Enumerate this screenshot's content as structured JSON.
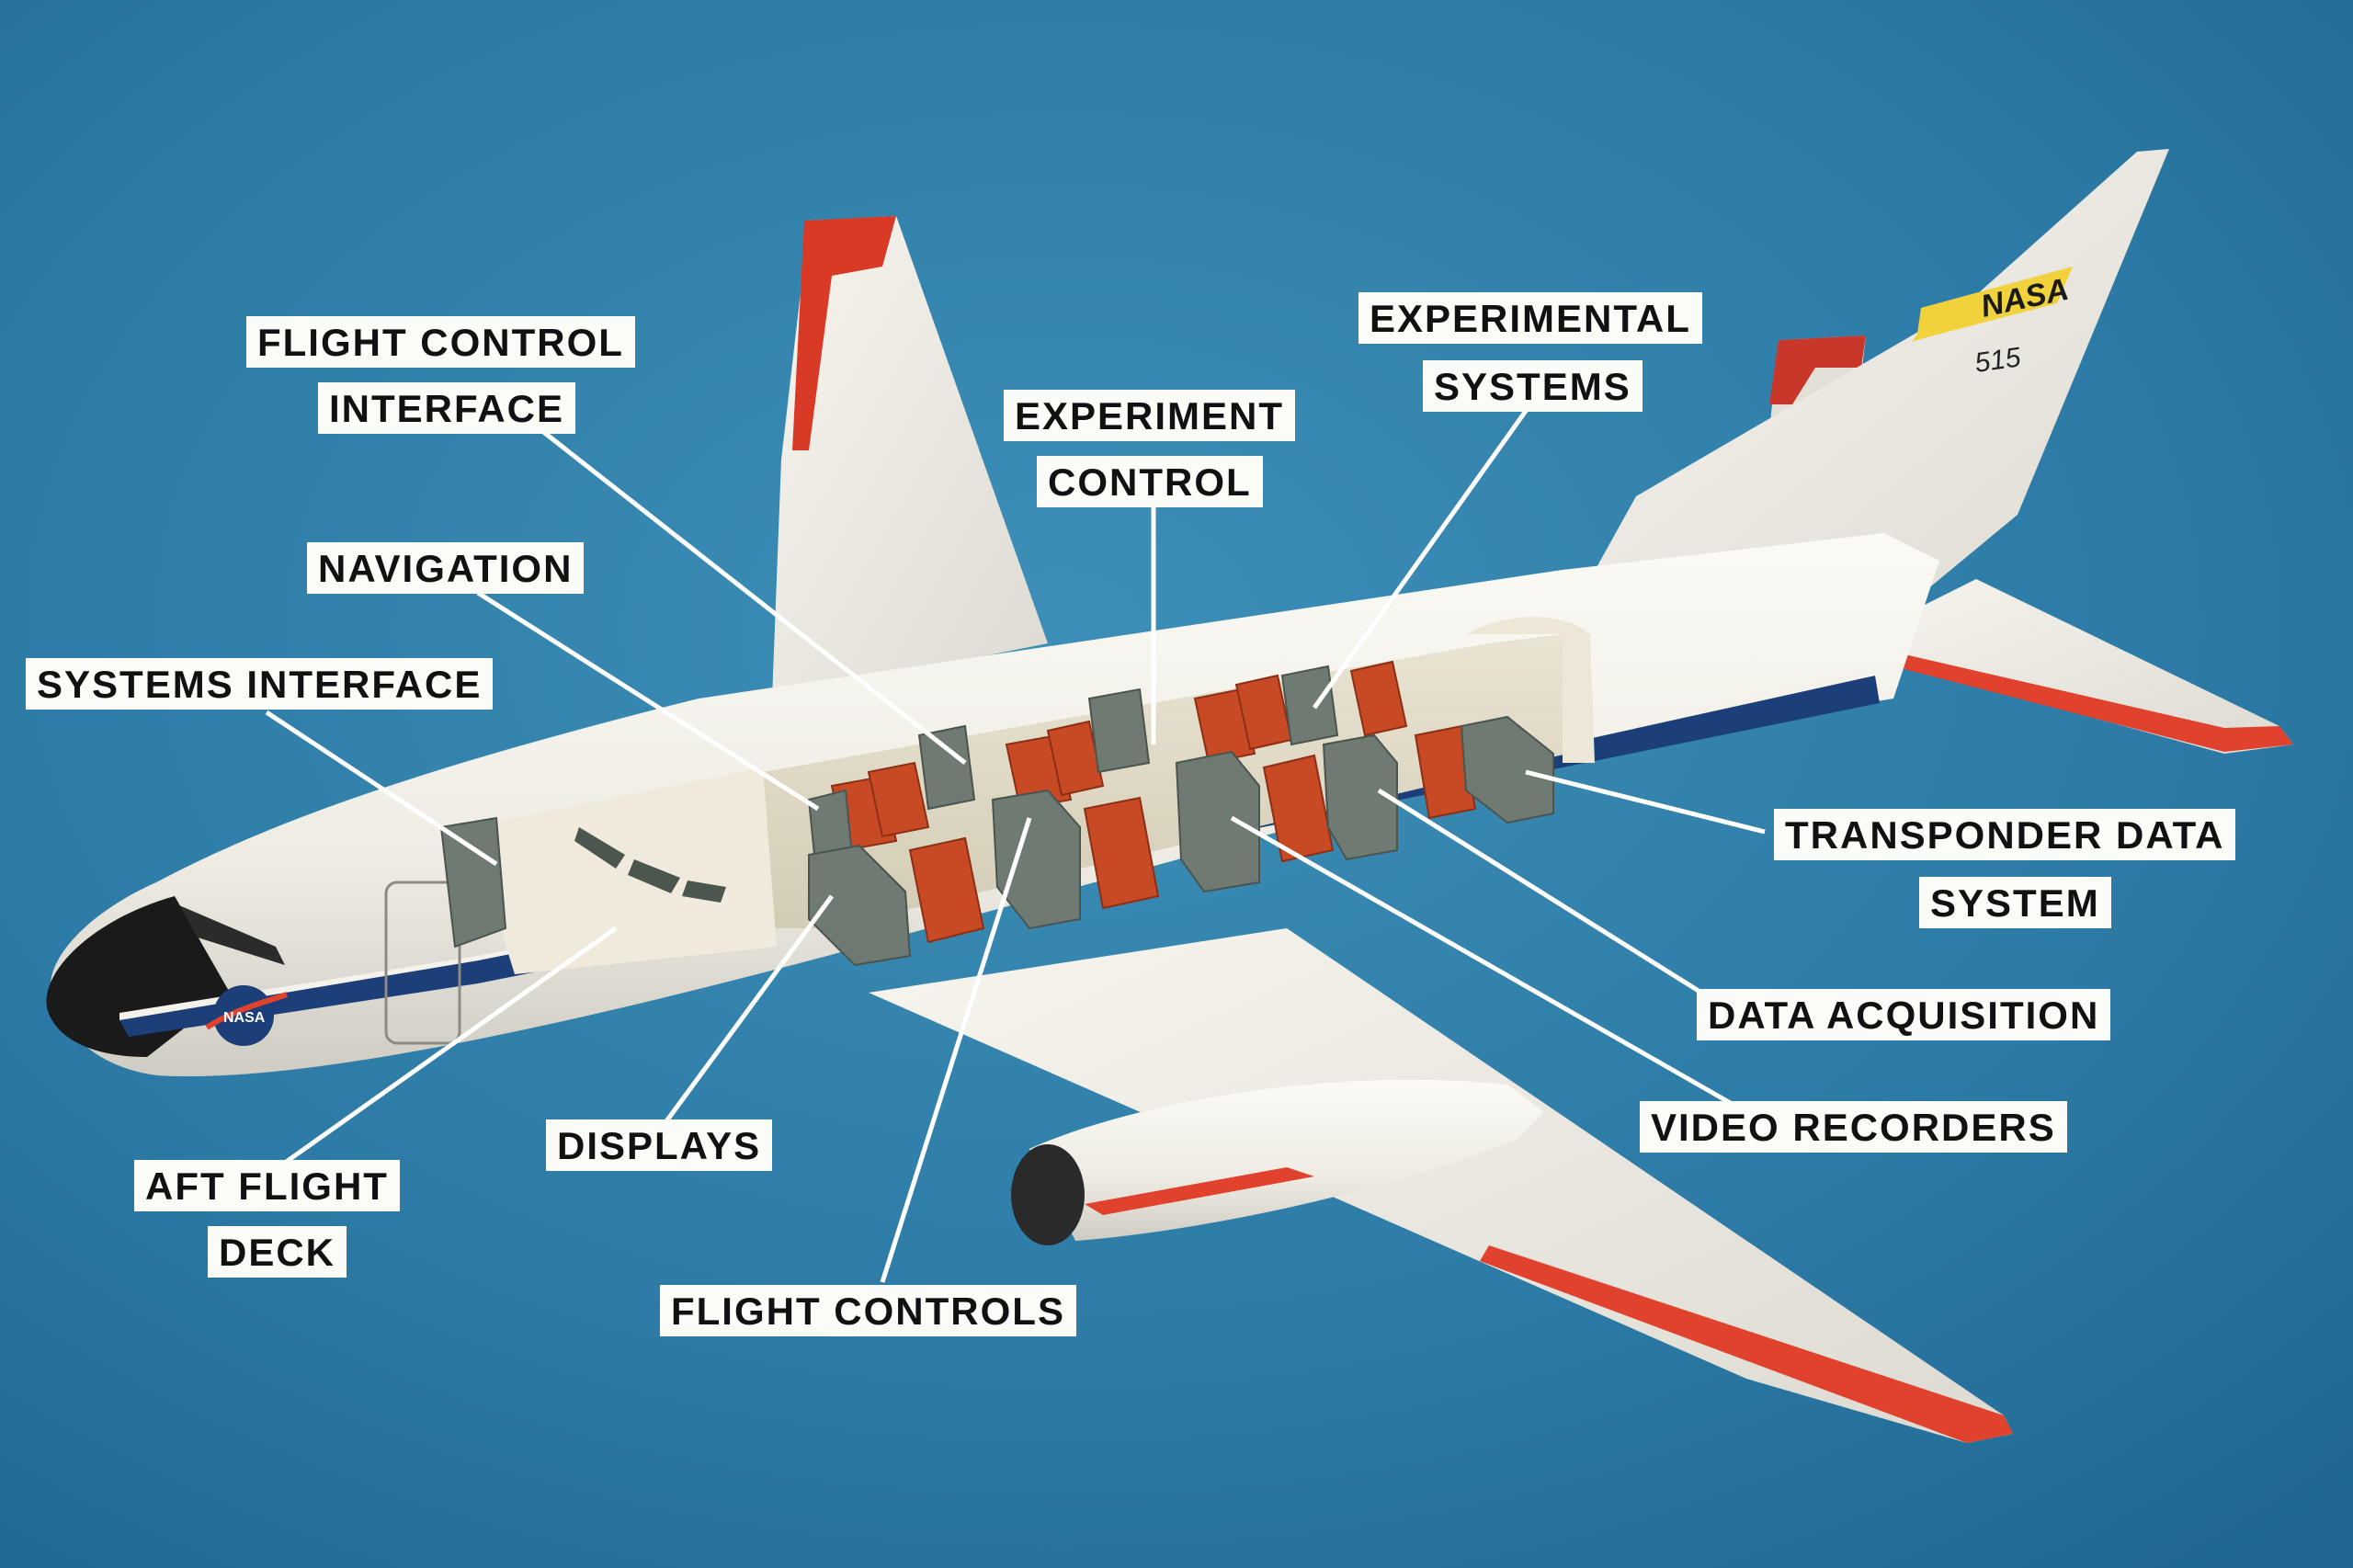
{
  "aircraft": {
    "tail_logo": "NASA",
    "tail_number": "515",
    "nose_logo": "NASA"
  },
  "labels": {
    "flight_control_interface": [
      "FLIGHT CONTROL",
      "INTERFACE"
    ],
    "navigation": "NAVIGATION",
    "systems_interface": "SYSTEMS INTERFACE",
    "aft_flight_deck": [
      "AFT FLIGHT",
      "DECK"
    ],
    "displays": "DISPLAYS",
    "flight_controls": "FLIGHT CONTROLS",
    "experiment_control": [
      "EXPERIMENT",
      "CONTROL"
    ],
    "experimental_systems": [
      "EXPERIMENTAL",
      "SYSTEMS"
    ],
    "transponder_data_system": [
      "TRANSPONDER DATA",
      "SYSTEM"
    ],
    "data_acquisition": "DATA ACQUISITION",
    "video_recorders": "VIDEO RECORDERS"
  },
  "colors": {
    "background": "#2f7ea8",
    "fuselage": "#f4f2ea",
    "stripe_blue": "#1c3f7a",
    "accent_red": "#e0422e",
    "seat_orange": "#c84a24",
    "equipment_gray": "#6e7a72",
    "nasa_yellow": "#f2d23c"
  }
}
